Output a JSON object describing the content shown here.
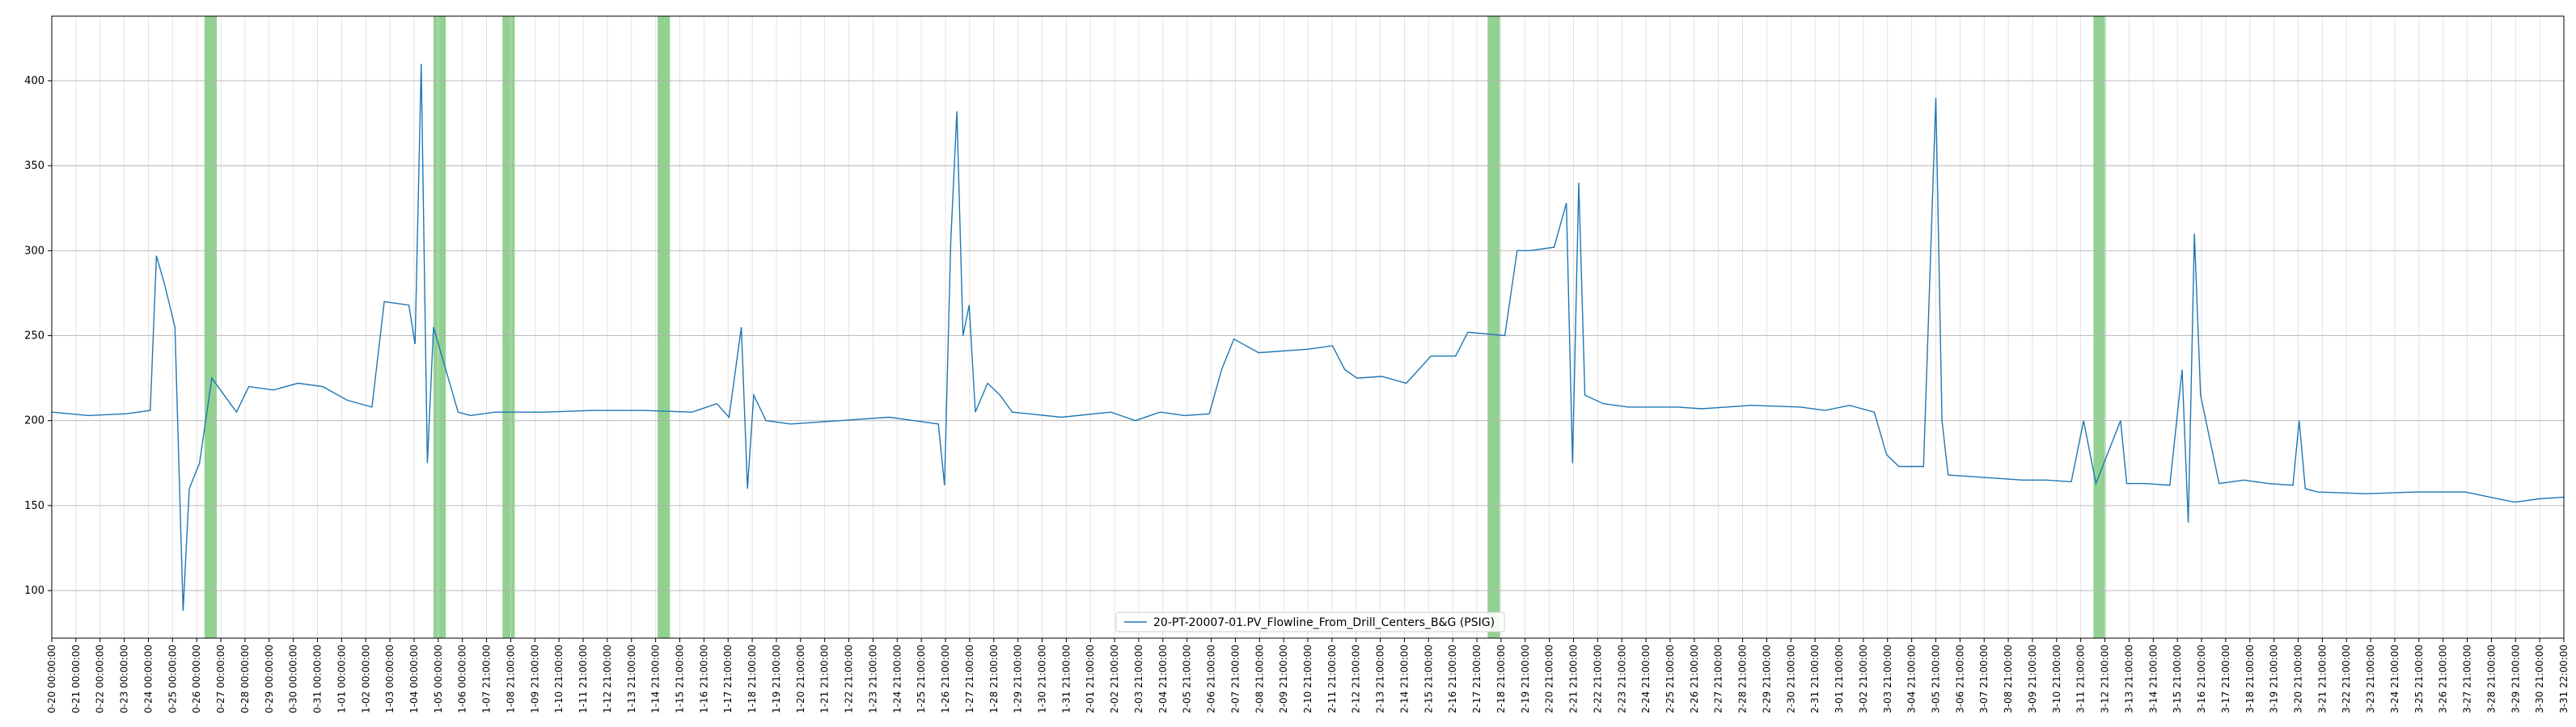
{
  "chart_data": {
    "type": "line",
    "title": "",
    "xlabel": "",
    "ylabel": "",
    "ylim": [
      72,
      438
    ],
    "yticks": [
      100,
      150,
      200,
      250,
      300,
      350,
      400
    ],
    "grid": true,
    "legend_position": "lower-center",
    "x_start": "2019-12-20T00:00",
    "x_end": "2020-03-31T22:00",
    "series": [
      {
        "name": "20-PT-20007-01.PV_Flowline_From_Drill_Centers_B&G (PSIG)",
        "color": "#1f77b4",
        "points": [
          [
            "12-20 00:00",
            205
          ],
          [
            "12-21 12:00",
            203
          ],
          [
            "12-23 00:00",
            204
          ],
          [
            "12-24 00:00",
            206
          ],
          [
            "12-24 06:00",
            297
          ],
          [
            "12-24 14:00",
            280
          ],
          [
            "12-25 00:00",
            255
          ],
          [
            "12-25 08:00",
            88
          ],
          [
            "12-25 14:00",
            160
          ],
          [
            "12-26 00:00",
            175
          ],
          [
            "12-26 12:00",
            225
          ],
          [
            "12-27 00:00",
            215
          ],
          [
            "12-27 12:00",
            205
          ],
          [
            "12-28 00:00",
            220
          ],
          [
            "12-29 00:00",
            218
          ],
          [
            "12-30 00:00",
            222
          ],
          [
            "12-31 00:00",
            220
          ],
          [
            "1-01 00:00",
            212
          ],
          [
            "1-02 00:00",
            208
          ],
          [
            "1-02 12:00",
            270
          ],
          [
            "1-03 12:00",
            268
          ],
          [
            "1-03 18:00",
            245
          ],
          [
            "1-04 00:00",
            410
          ],
          [
            "1-04 06:00",
            175
          ],
          [
            "1-04 12:00",
            255
          ],
          [
            "1-05 00:00",
            230
          ],
          [
            "1-05 12:00",
            205
          ],
          [
            "1-06 00:00",
            203
          ],
          [
            "1-07 00:00",
            205
          ],
          [
            "1-09 00:00",
            205
          ],
          [
            "1-11 00:00",
            206
          ],
          [
            "1-13 00:00",
            206
          ],
          [
            "1-15 00:00",
            205
          ],
          [
            "1-16 00:00",
            210
          ],
          [
            "1-16 12:00",
            202
          ],
          [
            "1-17 00:00",
            255
          ],
          [
            "1-17 06:00",
            160
          ],
          [
            "1-17 12:00",
            215
          ],
          [
            "1-18 00:00",
            200
          ],
          [
            "1-19 00:00",
            198
          ],
          [
            "1-21 00:00",
            200
          ],
          [
            "1-23 00:00",
            202
          ],
          [
            "1-24 00:00",
            200
          ],
          [
            "1-25 00:00",
            198
          ],
          [
            "1-25 06:00",
            162
          ],
          [
            "1-25 12:00",
            305
          ],
          [
            "1-25 18:00",
            382
          ],
          [
            "1-26 00:00",
            250
          ],
          [
            "1-26 06:00",
            268
          ],
          [
            "1-26 12:00",
            205
          ],
          [
            "1-27 00:00",
            222
          ],
          [
            "1-27 12:00",
            215
          ],
          [
            "1-28 00:00",
            205
          ],
          [
            "1-30 00:00",
            202
          ],
          [
            "2-01 00:00",
            205
          ],
          [
            "2-02 00:00",
            200
          ],
          [
            "2-03 00:00",
            205
          ],
          [
            "2-04 00:00",
            203
          ],
          [
            "2-05 00:00",
            204
          ],
          [
            "2-05 12:00",
            230
          ],
          [
            "2-06 00:00",
            248
          ],
          [
            "2-07 00:00",
            240
          ],
          [
            "2-09 00:00",
            242
          ],
          [
            "2-10 00:00",
            244
          ],
          [
            "2-10 12:00",
            230
          ],
          [
            "2-11 00:00",
            225
          ],
          [
            "2-12 00:00",
            226
          ],
          [
            "2-13 00:00",
            222
          ],
          [
            "2-14 00:00",
            238
          ],
          [
            "2-15 00:00",
            238
          ],
          [
            "2-15 12:00",
            252
          ],
          [
            "2-17 00:00",
            250
          ],
          [
            "2-17 12:00",
            300
          ],
          [
            "2-18 00:00",
            300
          ],
          [
            "2-19 00:00",
            302
          ],
          [
            "2-19 12:00",
            328
          ],
          [
            "2-19 18:00",
            175
          ],
          [
            "2-20 00:00",
            340
          ],
          [
            "2-20 06:00",
            215
          ],
          [
            "2-21 00:00",
            210
          ],
          [
            "2-22 00:00",
            208
          ],
          [
            "2-24 00:00",
            208
          ],
          [
            "2-25 00:00",
            207
          ],
          [
            "2-27 00:00",
            209
          ],
          [
            "2-29 00:00",
            208
          ],
          [
            "3-01 00:00",
            206
          ],
          [
            "3-02 00:00",
            209
          ],
          [
            "3-03 00:00",
            205
          ],
          [
            "3-03 12:00",
            180
          ],
          [
            "3-04 00:00",
            173
          ],
          [
            "3-05 00:00",
            173
          ],
          [
            "3-05 12:00",
            390
          ],
          [
            "3-05 18:00",
            200
          ],
          [
            "3-06 00:00",
            168
          ],
          [
            "3-07 00:00",
            167
          ],
          [
            "3-09 00:00",
            165
          ],
          [
            "3-10 00:00",
            165
          ],
          [
            "3-11 00:00",
            164
          ],
          [
            "3-11 12:00",
            200
          ],
          [
            "3-12 00:00",
            163
          ],
          [
            "3-13 00:00",
            200
          ],
          [
            "3-13 06:00",
            163
          ],
          [
            "3-14 00:00",
            163
          ],
          [
            "3-15 00:00",
            162
          ],
          [
            "3-15 12:00",
            230
          ],
          [
            "3-15 18:00",
            140
          ],
          [
            "3-16 00:00",
            310
          ],
          [
            "3-16 06:00",
            215
          ],
          [
            "3-17 00:00",
            163
          ],
          [
            "3-18 00:00",
            165
          ],
          [
            "3-19 00:00",
            163
          ],
          [
            "3-20 00:00",
            162
          ],
          [
            "3-20 06:00",
            200
          ],
          [
            "3-20 12:00",
            160
          ],
          [
            "3-21 00:00",
            158
          ],
          [
            "3-23 00:00",
            157
          ],
          [
            "3-25 00:00",
            158
          ],
          [
            "3-27 00:00",
            158
          ],
          [
            "3-28 00:00",
            155
          ],
          [
            "3-29 00:00",
            152
          ],
          [
            "3-30 00:00",
            154
          ],
          [
            "3-31 00:00",
            155
          ]
        ]
      }
    ],
    "series_note": "",
    "shaded_bands_days": [
      [
        6.2,
        6.7
      ],
      [
        15.5,
        16.0
      ],
      [
        18.3,
        18.8
      ],
      [
        24.6,
        25.1
      ],
      [
        58.3,
        58.8
      ],
      [
        82.9,
        83.4
      ]
    ],
    "xtick_labels": [
      "0-20 00:00:00",
      "0-21 00:00:00",
      "0-22 00:00:00",
      "0-23 00:00:00",
      "0-24 00:00:00",
      "0-25 00:00:00",
      "0-26 00:00:00",
      "0-27 00:00:00",
      "0-28 00:00:00",
      "0-29 00:00:00",
      "0-30 00:00:00",
      "0-31 00:00:00",
      "1-01 00:00:00",
      "1-02 00:00:00",
      "1-03 00:00:00",
      "1-04 00:00:00",
      "1-05 00:00:00",
      "1-06 00:00:00",
      "1-07 21:00:00",
      "1-08 21:00:00",
      "1-09 21:00:00",
      "1-10 21:00:00",
      "1-11 21:00:00",
      "1-12 21:00:00",
      "1-13 21:00:00",
      "1-14 21:00:00",
      "1-15 21:00:00",
      "1-16 21:00:00",
      "1-17 21:00:00",
      "1-18 21:00:00",
      "1-19 21:00:00",
      "1-20 21:00:00",
      "1-21 21:00:00",
      "1-22 21:00:00",
      "1-23 21:00:00",
      "1-24 21:00:00",
      "1-25 21:00:00",
      "1-26 21:00:00",
      "1-27 21:00:00",
      "1-28 21:00:00",
      "1-29 21:00:00",
      "1-30 21:00:00",
      "1-31 21:00:00",
      "2-01 21:00:00",
      "2-02 21:00:00",
      "2-03 21:00:00",
      "2-04 21:00:00",
      "2-05 21:00:00",
      "2-06 21:00:00",
      "2-07 21:00:00",
      "2-08 21:00:00",
      "2-09 21:00:00",
      "2-10 21:00:00",
      "2-11 21:00:00",
      "2-12 21:00:00",
      "2-13 21:00:00",
      "2-14 21:00:00",
      "2-15 21:00:00",
      "2-16 21:00:00",
      "2-17 21:00:00",
      "2-18 21:00:00",
      "2-19 21:00:00",
      "2-20 21:00:00",
      "2-21 21:00:00",
      "2-22 21:00:00",
      "2-23 21:00:00",
      "2-24 21:00:00",
      "2-25 21:00:00",
      "2-26 21:00:00",
      "2-27 21:00:00",
      "2-28 21:00:00",
      "2-29 21:00:00",
      "2-30 21:00:00",
      "2-31 21:00:00",
      "3-01 21:00:00",
      "3-02 21:00:00",
      "3-03 21:00:00",
      "3-04 21:00:00",
      "3-05 21:00:00",
      "3-06 21:00:00",
      "3-07 21:00:00",
      "3-08 21:00:00",
      "3-09 21:00:00",
      "3-10 21:00:00",
      "3-11 21:00:00",
      "3-12 21:00:00",
      "3-13 21:00:00",
      "3-14 21:00:00",
      "3-15 21:00:00",
      "3-16 21:00:00",
      "3-17 21:00:00",
      "3-18 21:00:00",
      "3-19 21:00:00",
      "3-20 21:00:00",
      "3-21 21:00:00",
      "3-22 21:00:00",
      "3-23 21:00:00",
      "3-24 21:00:00",
      "3-25 21:00:00",
      "3-26 21:00:00",
      "3-27 21:00:00",
      "3-28 21:00:00",
      "3-29 21:00:00",
      "3-30 21:00:00",
      "3-31 22:00:00"
    ],
    "colors": {
      "line": "#1f77b4",
      "band": "#7fc97f",
      "grid_major": "#b0b0b0",
      "grid_minor": "#dcdcdc",
      "axes": "#000000"
    }
  }
}
